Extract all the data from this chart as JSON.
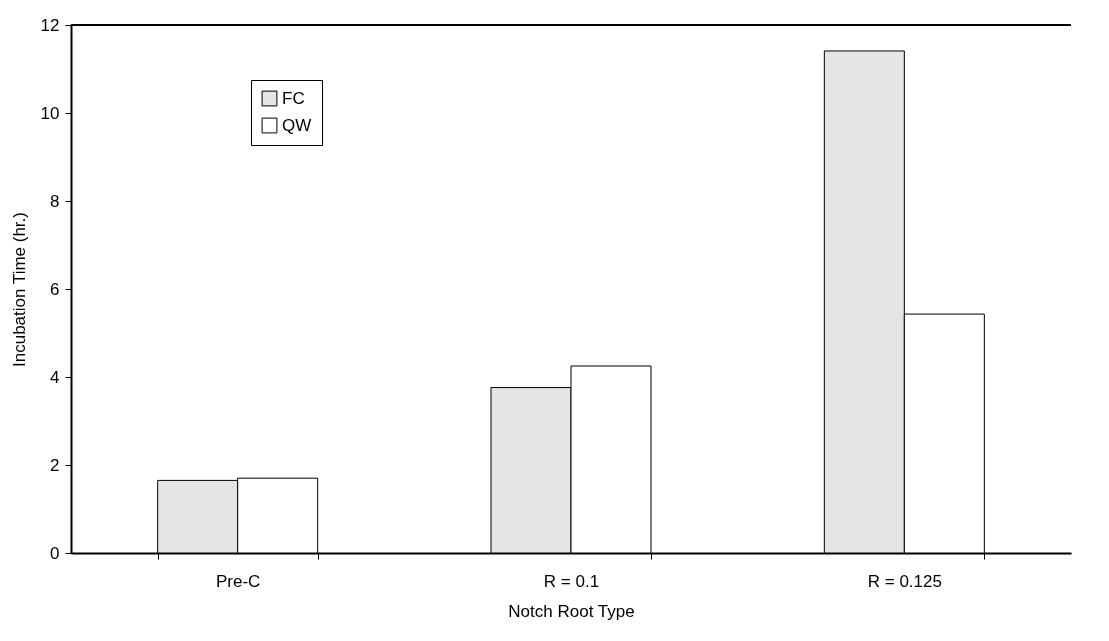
{
  "chart_data": {
    "type": "bar",
    "xlabel": "Notch Root Type",
    "ylabel": "Incubation Time (hr.)",
    "categories": [
      "Pre-C",
      "R = 0.1",
      "R = 0.125"
    ],
    "series": [
      {
        "name": "FC",
        "color": "#e5e5e5",
        "values": [
          1.65,
          3.76,
          11.41
        ]
      },
      {
        "name": "QW",
        "color": "#ffffff",
        "values": [
          1.7,
          4.25,
          5.43
        ]
      }
    ],
    "ylim": [
      0,
      12
    ],
    "yticks": [
      0,
      2,
      4,
      6,
      8,
      10,
      12
    ],
    "grid": false,
    "legend": "top left"
  }
}
